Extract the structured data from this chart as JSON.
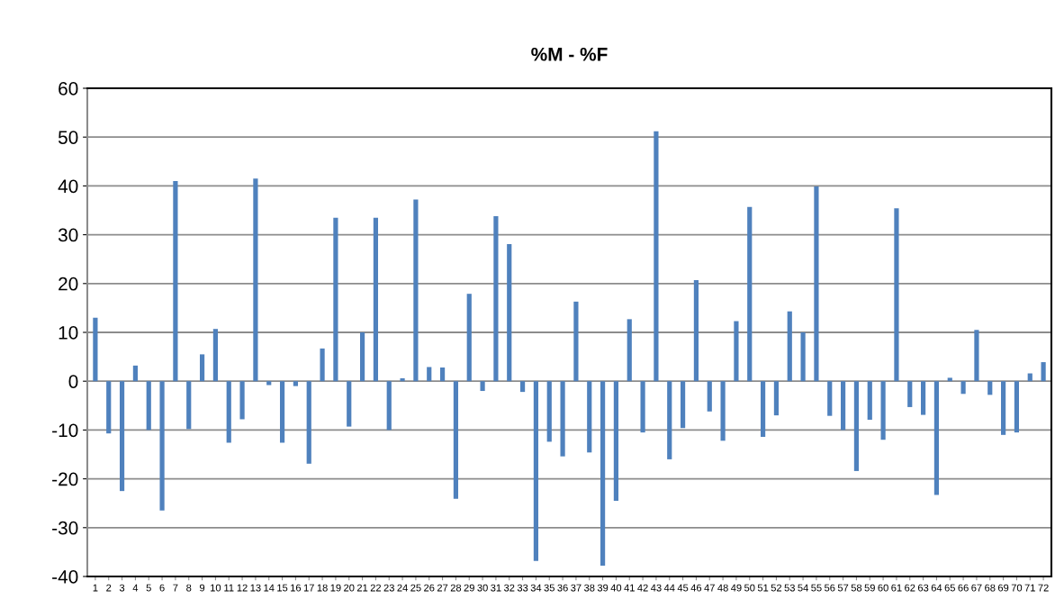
{
  "chart_data": {
    "type": "bar",
    "title": "%M - %F",
    "categories": [
      "1",
      "2",
      "3",
      "4",
      "5",
      "6",
      "7",
      "8",
      "9",
      "10",
      "11",
      "12",
      "13",
      "14",
      "15",
      "16",
      "17",
      "18",
      "19",
      "20",
      "21",
      "22",
      "23",
      "24",
      "25",
      "26",
      "27",
      "28",
      "29",
      "30",
      "31",
      "32",
      "33",
      "34",
      "35",
      "36",
      "37",
      "38",
      "39",
      "40",
      "41",
      "42",
      "43",
      "44",
      "45",
      "46",
      "47",
      "48",
      "49",
      "50",
      "51",
      "52",
      "53",
      "54",
      "55",
      "56",
      "57",
      "58",
      "59",
      "60",
      "61",
      "62",
      "63",
      "64",
      "65",
      "66",
      "67",
      "68",
      "69",
      "70",
      "71",
      "72"
    ],
    "values": [
      13,
      -10.7,
      -22.5,
      3.2,
      -10,
      -26.5,
      41,
      -9.8,
      5.5,
      10.7,
      -12.6,
      -7.8,
      41.5,
      -0.8,
      -12.6,
      -1,
      -16.9,
      6.7,
      33.5,
      -9.3,
      10,
      33.5,
      -10,
      0.6,
      37.2,
      2.9,
      2.8,
      -24.1,
      17.9,
      -2,
      33.8,
      28.1,
      -2.2,
      -36.8,
      -12.4,
      -15.4,
      16.3,
      -14.6,
      -37.8,
      -24.5,
      12.7,
      -10.5,
      51.2,
      -16,
      -9.6,
      20.7,
      -6.2,
      -12.2,
      12.3,
      35.7,
      -11.4,
      -7,
      14.3,
      10,
      39.9,
      -7.1,
      -10,
      -18.4,
      -7.9,
      -12,
      35.4,
      -5.3,
      -6.9,
      -23.3,
      0.7,
      -2.6,
      10.5,
      -2.8,
      -11,
      -10.5,
      1.6,
      3.9
    ],
    "color": "#4f81bd",
    "ylim": [
      -40,
      60
    ],
    "yticks": [
      -40,
      -30,
      -20,
      -10,
      0,
      10,
      20,
      30,
      40,
      50,
      60
    ],
    "grid": "y"
  }
}
